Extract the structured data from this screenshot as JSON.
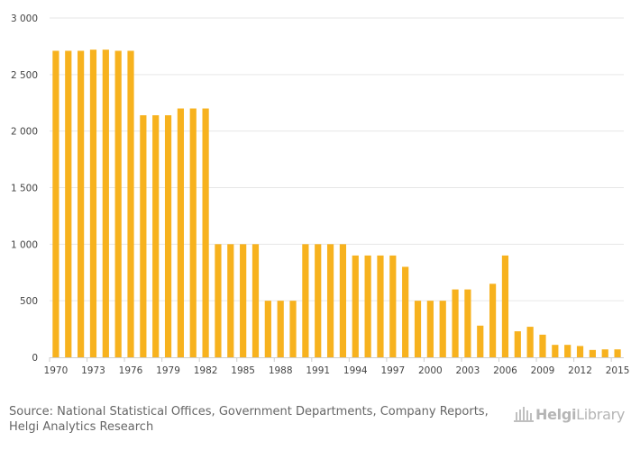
{
  "colors": {
    "bar": "#F7B21E",
    "grid": "#e6e6e6",
    "axis": "#cfcfcf",
    "logo": "#b5b5b5"
  },
  "chart_data": {
    "type": "bar",
    "title": "",
    "xlabel": "",
    "ylabel": "",
    "ylim": [
      0,
      3000
    ],
    "yticks": [
      "0",
      "500",
      "1 000",
      "1 500",
      "2 000",
      "2 500",
      "3 000"
    ],
    "ytick_values": [
      0,
      500,
      1000,
      1500,
      2000,
      2500,
      3000
    ],
    "categories": [
      "1970",
      "1971",
      "1972",
      "1973",
      "1974",
      "1975",
      "1976",
      "1977",
      "1978",
      "1979",
      "1980",
      "1981",
      "1982",
      "1983",
      "1984",
      "1985",
      "1986",
      "1987",
      "1988",
      "1989",
      "1990",
      "1991",
      "1992",
      "1993",
      "1994",
      "1995",
      "1996",
      "1997",
      "1998",
      "1999",
      "2000",
      "2001",
      "2002",
      "2003",
      "2004",
      "2005",
      "2006",
      "2007",
      "2008",
      "2009",
      "2010",
      "2011",
      "2012",
      "2013",
      "2014",
      "2015"
    ],
    "values": [
      2710,
      2710,
      2710,
      2720,
      2720,
      2710,
      2710,
      2140,
      2140,
      2140,
      2200,
      2200,
      2200,
      1000,
      1000,
      1000,
      1000,
      500,
      500,
      500,
      1000,
      1000,
      1000,
      1000,
      900,
      900,
      900,
      900,
      800,
      500,
      500,
      500,
      600,
      600,
      280,
      650,
      900,
      230,
      270,
      200,
      110,
      110,
      100,
      65,
      70,
      70
    ],
    "xtick_labels": [
      "1970",
      "1973",
      "1976",
      "1979",
      "1982",
      "1985",
      "1988",
      "1991",
      "1994",
      "1997",
      "2000",
      "2003",
      "2006",
      "2009",
      "2012",
      "2015"
    ],
    "grid": true
  },
  "footer": {
    "source_line1": "Source: National Statistical Offices, Government Departments, Company Reports,",
    "source_line2": "Helgi Analytics Research",
    "logo_helgi": "Helgi",
    "logo_library": "Library"
  }
}
